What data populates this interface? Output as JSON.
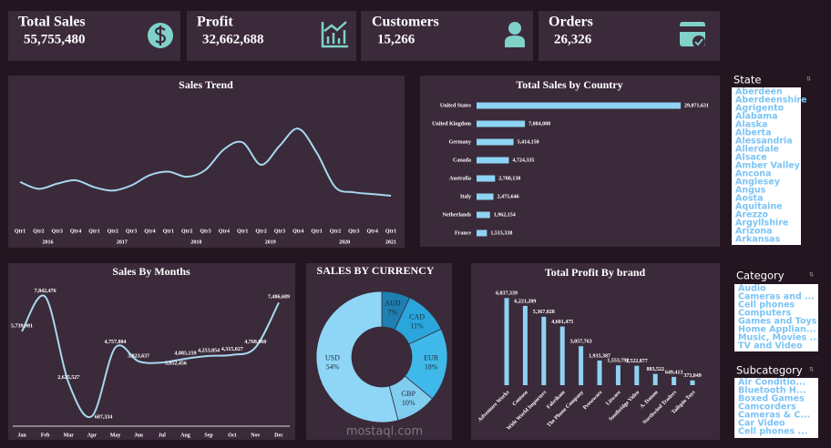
{
  "kpis": [
    {
      "label": "Total Sales",
      "value": "55,755,480"
    },
    {
      "label": "Profit",
      "value": "32,662,688"
    },
    {
      "label": "Customers",
      "value": "15,266"
    },
    {
      "label": "Orders",
      "value": "26,326"
    }
  ],
  "chart_data": [
    {
      "type": "line",
      "title": "Sales Trend",
      "color": "#a6d8ee",
      "categories": [
        "Qtr1",
        "Qtr2",
        "Qtr3",
        "Qtr4",
        "Qtr1",
        "Qtr2",
        "Qtr3",
        "Qtr4",
        "Qtr1",
        "Qtr2",
        "Qtr3",
        "Qtr4",
        "Qtr1",
        "Qtr2",
        "Qtr3",
        "Qtr4",
        "Qtr1",
        "Qtr2",
        "Qtr3",
        "Qtr4",
        "Qtr1"
      ],
      "x_groups": [
        "2016",
        "2017",
        "2018",
        "2019",
        "2020",
        "2021"
      ],
      "values": [
        1700000,
        1300000,
        1600000,
        1800000,
        1400000,
        1200000,
        1500000,
        2100000,
        2300000,
        2000000,
        2400000,
        3600000,
        4000000,
        2700000,
        3800000,
        4800000,
        3400000,
        1400000,
        1100000,
        1000000,
        900000
      ],
      "ylim": [
        0,
        5500000
      ]
    },
    {
      "type": "bar",
      "orientation": "horizontal",
      "title": "Total Sales by Country",
      "color": "#8dd3f3",
      "categories": [
        "United States",
        "United Kingdom",
        "Germany",
        "Canada",
        "Australia",
        "Italy",
        "Netherlands",
        "France"
      ],
      "values": [
        29871631,
        7084088,
        5414150,
        4724335,
        2708138,
        2475646,
        1962154,
        1515338
      ],
      "value_labels": [
        "29,871,631",
        "7,084,088",
        "5,414,150",
        "4,724,335",
        "2,708,138",
        "2,475,646",
        "1,962,154",
        "1,515,338"
      ],
      "xlim": [
        0,
        30000000
      ]
    },
    {
      "type": "line",
      "title": "Sales By Months",
      "color": "#a6d8ee",
      "categories": [
        "Jan",
        "Feb",
        "Mar",
        "Apr",
        "May",
        "Jun",
        "Jul",
        "Aug",
        "Sep",
        "Oct",
        "Nov",
        "Dec"
      ],
      "values": [
        5739981,
        7842476,
        2625527,
        607334,
        4757804,
        3923637,
        3852456,
        4085159,
        4253854,
        4315027,
        4768060,
        7486689
      ],
      "value_labels": [
        "5,739,981",
        "7,842,476",
        "2,625,527",
        "607,334",
        "4,757,804",
        "3,923,637",
        "3,852,456",
        "4,085,159",
        "4,253,854",
        "4,315,027",
        "4,768,060",
        "7,486,689"
      ],
      "ylim": [
        0,
        8000000
      ]
    },
    {
      "type": "pie",
      "title": "SALES BY CURRENCY",
      "hole": true,
      "categories": [
        "AUD",
        "CAD",
        "EUR",
        "GBP",
        "USD"
      ],
      "values": [
        7,
        11,
        18,
        10,
        54
      ],
      "value_labels": [
        "7%",
        "11%",
        "18%",
        "10%",
        "54%"
      ],
      "colors": [
        "#1f7fb0",
        "#2aa6dc",
        "#3fb9ea",
        "#7fcdef",
        "#8fd6f6"
      ]
    },
    {
      "type": "bar",
      "orientation": "vertical",
      "title": "Total Profit By brand",
      "color": "#8dd3f3",
      "categories": [
        "Adventure Works",
        "Contoso",
        "Wide World Importers",
        "Fabrikam",
        "The Phone Company",
        "Proseware",
        "Litware",
        "Southridge Video",
        "A. Datum",
        "Northwind Traders",
        "Tailspin Toys"
      ],
      "values": [
        6837339,
        6221209,
        5367028,
        4601475,
        3057763,
        1935387,
        1553792,
        1522877,
        883522,
        649413,
        373049
      ],
      "value_labels": [
        "6,837,339",
        "6,221,209",
        "5,367,028",
        "4,601,475",
        "3,057,763",
        "1,935,387",
        "1,553,792",
        "1,522,877",
        "883,522",
        "649,413",
        "373,049"
      ],
      "ylim": [
        0,
        7000000
      ]
    }
  ],
  "slicers": [
    {
      "title": "State",
      "items": [
        "Aberdeen",
        "Aberdeenshire",
        "Agrigento",
        "Alabama",
        "Alaska",
        "Alberta",
        "Alessandria",
        "Allerdale",
        "Alsace",
        "Amber Valley",
        "Ancona",
        "Anglesey",
        "Angus",
        "Aosta",
        "Aquitaine",
        "Arezzo",
        "Argyllshire",
        "Arizona",
        "Arkansas"
      ]
    },
    {
      "title": "Category",
      "items": [
        "Audio",
        "Cameras and ...",
        "Cell phones",
        "Computers",
        "Games and Toys",
        "Home Applian...",
        "Music, Movies ...",
        "TV and Video"
      ]
    },
    {
      "title": "Subcategory",
      "items": [
        "Air Conditio...",
        "Bluetooth H...",
        "Boxed Games",
        "Camcorders",
        "Cameras & C...",
        "Car Video",
        "Cell phones ..."
      ]
    }
  ],
  "watermark": "mostaql.com"
}
